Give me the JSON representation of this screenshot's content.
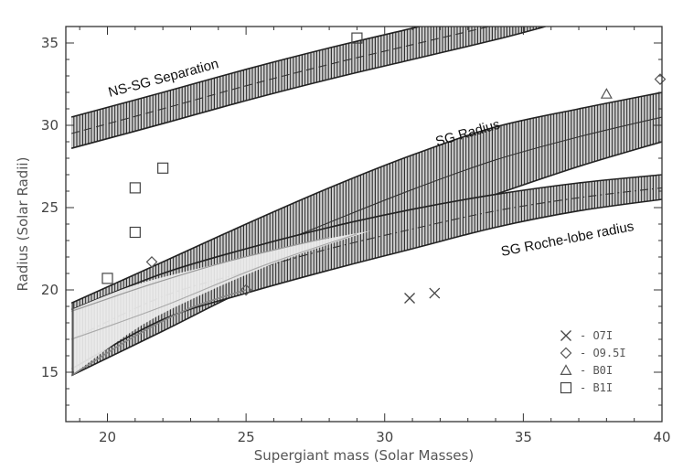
{
  "chart_data": {
    "type": "line",
    "xlabel": "Supergiant mass (Solar Masses)",
    "ylabel": "Radius (Solar Radii)",
    "xlim": [
      18.5,
      40
    ],
    "ylim": [
      12,
      36
    ],
    "xticks": [
      20,
      25,
      30,
      35,
      40
    ],
    "yticks": [
      15,
      20,
      25,
      30,
      35
    ],
    "grid": false,
    "legend_position": "bottom-right",
    "bands": [
      {
        "name": "NS-SG Separation",
        "x": [
          18.7,
          22,
          25,
          28,
          31,
          34,
          35.8
        ],
        "lower": [
          28.6,
          30.1,
          31.5,
          32.8,
          34.0,
          35.2,
          36.0
        ],
        "upper": [
          30.5,
          32.0,
          33.4,
          34.7,
          35.9,
          37.1,
          37.9
        ],
        "center": [
          29.5,
          31.0,
          32.4,
          33.7,
          34.9,
          36.1,
          36.9
        ]
      },
      {
        "name": "SG Radius",
        "x": [
          18.7,
          22,
          25,
          28,
          31,
          34,
          37,
          40
        ],
        "lower": [
          14.8,
          17.5,
          20.0,
          22.0,
          24.0,
          25.8,
          27.5,
          29.0
        ],
        "upper": [
          19.2,
          21.7,
          24.0,
          26.2,
          28.2,
          29.9,
          31.0,
          32.0
        ],
        "center": [
          17.0,
          19.6,
          22.0,
          24.1,
          26.1,
          27.9,
          29.3,
          30.5
        ]
      },
      {
        "name": "SG Roche-lobe radius",
        "x": [
          18.7,
          22,
          25,
          28,
          31,
          34,
          37,
          40
        ],
        "lower": [
          15.2,
          18.2,
          19.8,
          21.2,
          22.5,
          23.8,
          24.8,
          25.5
        ],
        "upper": [
          18.8,
          21.0,
          22.5,
          23.8,
          24.9,
          25.8,
          26.5,
          27.0
        ],
        "center": [
          17.0,
          19.6,
          21.1,
          22.5,
          23.7,
          24.8,
          25.6,
          26.2
        ]
      }
    ],
    "scatter": [
      {
        "name": "O7I",
        "marker": "x",
        "points": [
          [
            30.9,
            19.5
          ],
          [
            31.8,
            19.8
          ]
        ]
      },
      {
        "name": "O9.5I",
        "marker": "diamond",
        "points": [
          [
            21.6,
            21.7
          ],
          [
            25.0,
            20.0
          ],
          [
            40.0,
            32.8
          ]
        ]
      },
      {
        "name": "B0I",
        "marker": "triangle",
        "points": [
          [
            38.0,
            31.9
          ]
        ]
      },
      {
        "name": "B1I",
        "marker": "square",
        "points": [
          [
            20.0,
            20.7
          ],
          [
            21.0,
            23.5
          ],
          [
            21.0,
            26.2
          ],
          [
            22.0,
            27.4
          ],
          [
            29.0,
            35.3
          ]
        ]
      }
    ],
    "legend": [
      {
        "marker": "x",
        "label": "- O7I"
      },
      {
        "marker": "diamond",
        "label": "- O9.5I"
      },
      {
        "marker": "triangle",
        "label": "- B0I"
      },
      {
        "marker": "square",
        "label": "- B1I"
      }
    ]
  }
}
